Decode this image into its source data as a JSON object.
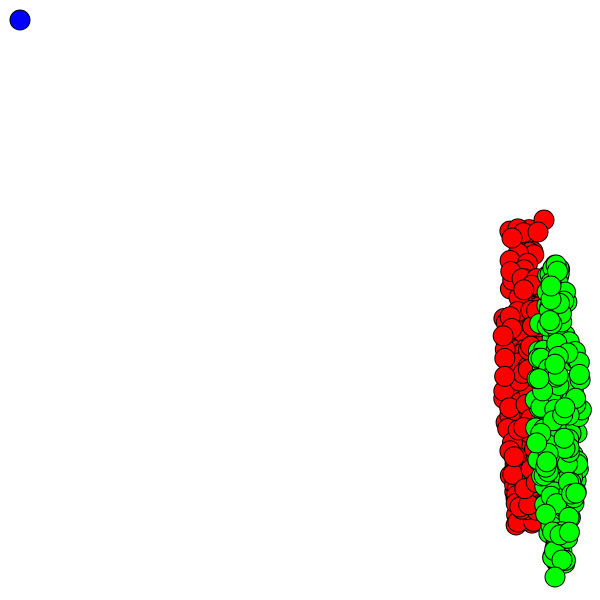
{
  "colors": {
    "background": "#ffffff",
    "outlier_fill": "#0000ff",
    "red_cluster_fill": "#ff0000",
    "green_cluster_fill": "#00ff00",
    "node_stroke": "#000000"
  },
  "groups": [
    {
      "name": "outlier",
      "color": "#0000ff",
      "count": 1
    },
    {
      "name": "red-cluster",
      "color": "#ff0000",
      "count": 180
    },
    {
      "name": "green-cluster",
      "color": "#00ff00",
      "count": 200
    }
  ]
}
